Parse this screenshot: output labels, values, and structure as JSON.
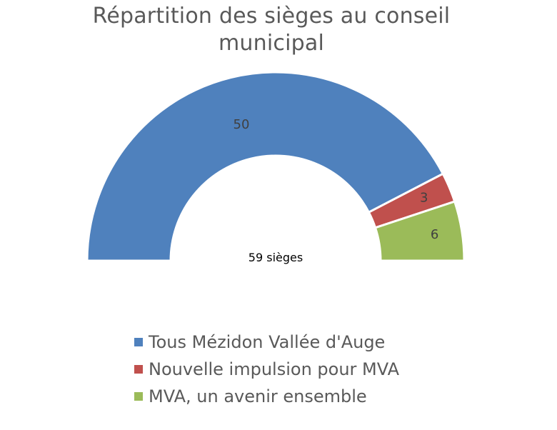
{
  "chart_data": {
    "type": "pie",
    "subtype": "half-donut",
    "title": "Répartition des sièges au conseil municipal",
    "center_label": "59 sièges",
    "total": 59,
    "series": [
      {
        "name": "Tous Mézidon Vallée d'Auge",
        "value": 50,
        "color": "#4F81BD"
      },
      {
        "name": "Nouvelle impulsion pour MVA",
        "value": 3,
        "color": "#C0504D"
      },
      {
        "name": "MVA, un avenir ensemble",
        "value": 6,
        "color": "#9BBB59"
      }
    ],
    "legend_position": "bottom"
  }
}
